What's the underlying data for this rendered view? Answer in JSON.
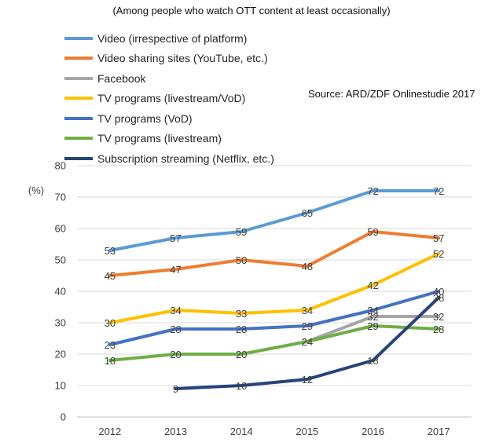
{
  "subtitle": "(Among people who watch OTT content at least occasionally)",
  "source": "Source: ARD/ZDF Onlinestudie 2017",
  "chart_data": {
    "type": "line",
    "categories": [
      "2012",
      "2013",
      "2014",
      "2015",
      "2016",
      "2017"
    ],
    "ylabel": "(%)",
    "ylim": [
      0,
      80
    ],
    "yticks": [
      0,
      10,
      20,
      30,
      40,
      50,
      60,
      70,
      80
    ],
    "grid": true,
    "legend_position": "top-left",
    "series": [
      {
        "name": "Video (irrespective of platform)",
        "color": "#5b9bd5",
        "values": [
          53,
          57,
          59,
          65,
          72,
          72
        ]
      },
      {
        "name": "Video sharing sites (YouTube, etc.)",
        "color": "#ed7d31",
        "values": [
          45,
          47,
          50,
          48,
          59,
          57
        ]
      },
      {
        "name": "Facebook",
        "color": "#a5a5a5",
        "values": [
          null,
          null,
          null,
          24,
          32,
          32
        ]
      },
      {
        "name": "TV programs (livestream/VoD)",
        "color": "#ffc000",
        "values": [
          30,
          34,
          33,
          34,
          42,
          52
        ]
      },
      {
        "name": "TV programs (VoD)",
        "color": "#4472c4",
        "values": [
          23,
          28,
          28,
          29,
          34,
          40
        ]
      },
      {
        "name": "TV programs (livestream)",
        "color": "#70ad47",
        "values": [
          18,
          20,
          20,
          24,
          29,
          28
        ]
      },
      {
        "name": "Subscription streaming (Netflix, etc.)",
        "color": "#264478",
        "values": [
          null,
          9,
          10,
          12,
          18,
          38
        ]
      }
    ]
  }
}
